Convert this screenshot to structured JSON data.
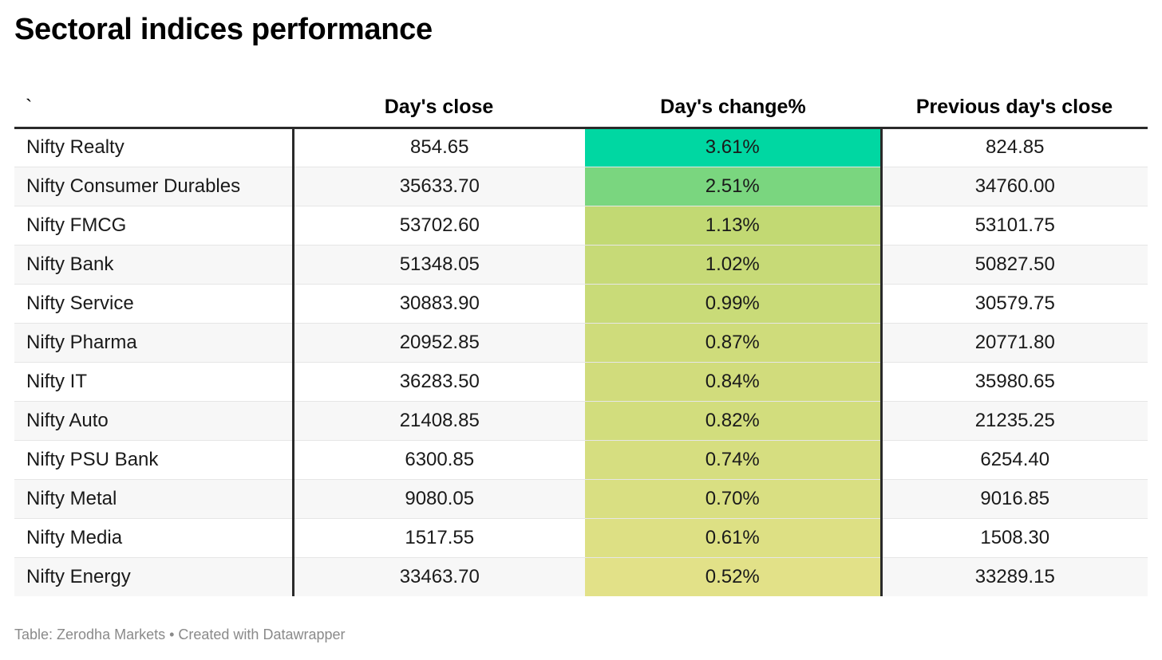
{
  "title": "Sectoral indices performance",
  "footer": "Table: Zerodha Markets • Created with Datawrapper",
  "chart_data": {
    "type": "table",
    "title": "Sectoral indices performance",
    "columns": [
      "`",
      "Day's close",
      "Day's change%",
      "Previous day's close"
    ],
    "rows": [
      [
        "Nifty Realty",
        "854.65",
        "3.61%",
        "824.85"
      ],
      [
        "Nifty Consumer Durables",
        "35633.70",
        "2.51%",
        "34760.00"
      ],
      [
        "Nifty FMCG",
        "53702.60",
        "1.13%",
        "53101.75"
      ],
      [
        "Nifty Bank",
        "51348.05",
        "1.02%",
        "50827.50"
      ],
      [
        "Nifty Service",
        "30883.90",
        "0.99%",
        "30579.75"
      ],
      [
        "Nifty Pharma",
        "20952.85",
        "0.87%",
        "20771.80"
      ],
      [
        "Nifty IT",
        "36283.50",
        "0.84%",
        "35980.65"
      ],
      [
        "Nifty Auto",
        "21408.85",
        "0.82%",
        "21235.25"
      ],
      [
        "Nifty PSU Bank",
        "6300.85",
        "0.74%",
        "6254.40"
      ],
      [
        "Nifty Metal",
        "9080.05",
        "0.70%",
        "9016.85"
      ],
      [
        "Nifty Media",
        "1517.55",
        "0.61%",
        "1508.30"
      ],
      [
        "Nifty Energy",
        "33463.70",
        "0.52%",
        "33289.15"
      ]
    ],
    "heatmap_column": "Day's change%",
    "heatmap_colors": [
      "#00d7a2",
      "#7ad67f",
      "#c2d973",
      "#c7da77",
      "#c9db78",
      "#cfdc7b",
      "#d1dc7c",
      "#d2dd7d",
      "#d6de80",
      "#d9df82",
      "#dde084",
      "#e2e188"
    ]
  }
}
